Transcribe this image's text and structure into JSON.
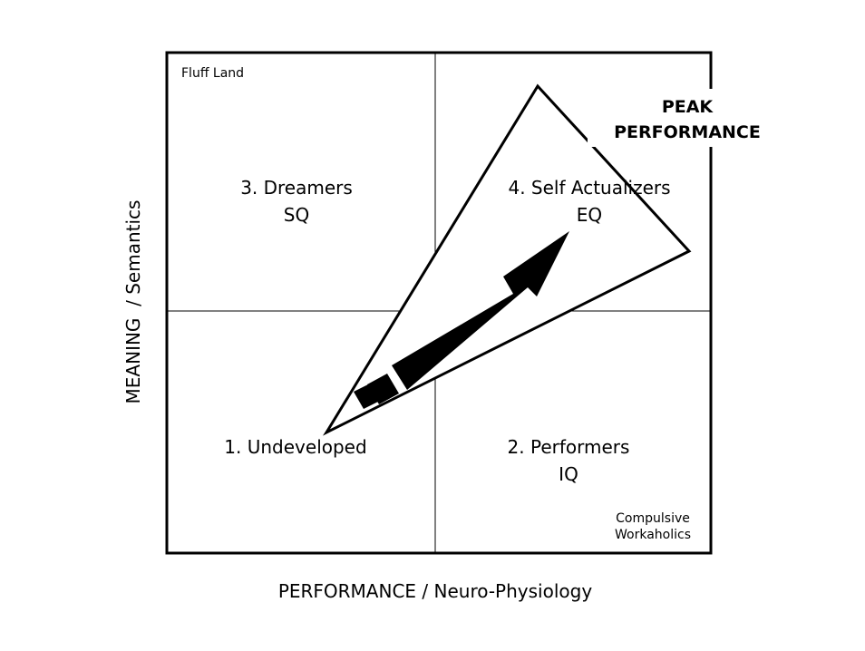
{
  "axes": {
    "x_label": "PERFORMANCE / Neuro-Physiology",
    "y_label": "MEANING  / Semantics"
  },
  "quadrants": {
    "q3": {
      "title": "3. Dreamers",
      "sub": "SQ"
    },
    "q4": {
      "title": "4. Self Actualizers",
      "sub": "EQ"
    },
    "q1": {
      "title": "1. Undeveloped"
    },
    "q2": {
      "title": "2. Performers",
      "sub": "IQ"
    }
  },
  "notes": {
    "top_left": "Fluff Land",
    "bottom_right_line1": "Compulsive",
    "bottom_right_line2": "Workaholics"
  },
  "peak": {
    "line1": "PEAK",
    "line2": "PERFORMANCE"
  }
}
